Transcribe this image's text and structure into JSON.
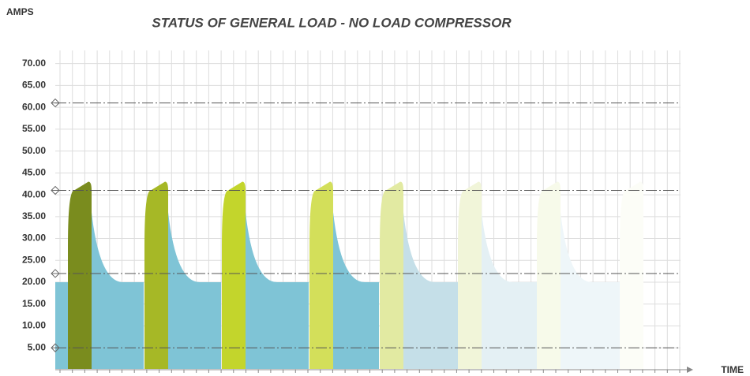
{
  "chart_data": {
    "type": "cycles",
    "title": "STATUS OF GENERAL LOAD - NO LOAD COMPRESSOR",
    "y_label": "AMPS",
    "x_label": "TIME",
    "ylim": [
      0,
      73
    ],
    "yticks": [
      {
        "value": 5,
        "label": "5.00"
      },
      {
        "value": 10,
        "label": "10.00"
      },
      {
        "value": 15,
        "label": "15.00"
      },
      {
        "value": 20,
        "label": "20.00"
      },
      {
        "value": 25,
        "label": "25.00"
      },
      {
        "value": 30,
        "label": "30.00"
      },
      {
        "value": 35,
        "label": "35.00"
      },
      {
        "value": 40,
        "label": "40.00"
      },
      {
        "value": 45,
        "label": "45.00"
      },
      {
        "value": 50,
        "label": "50.00"
      },
      {
        "value": 55,
        "label": "55.00"
      },
      {
        "value": 60,
        "label": "60.00"
      },
      {
        "value": 65,
        "label": "65.00"
      },
      {
        "value": 70,
        "label": "70.00"
      }
    ],
    "grid": true,
    "reference_lines": [
      61,
      41,
      22,
      5
    ],
    "inrush_current": 41,
    "peak_current": 43,
    "decay_start": 36,
    "running_current": 20,
    "startup_colors": [
      "#7a8c1e",
      "#a6b826",
      "#c3d52c",
      "#d3df5a",
      "#e2eaa2",
      "#f1f5d9",
      "#f7faea",
      "#fcfdf7"
    ],
    "running_colors": [
      "#7fc4d6",
      "#7fc4d6",
      "#7fc4d6",
      "#7fc4d6",
      "#c5dfe8",
      "#e4f0f4",
      "#eef6f9"
    ]
  }
}
